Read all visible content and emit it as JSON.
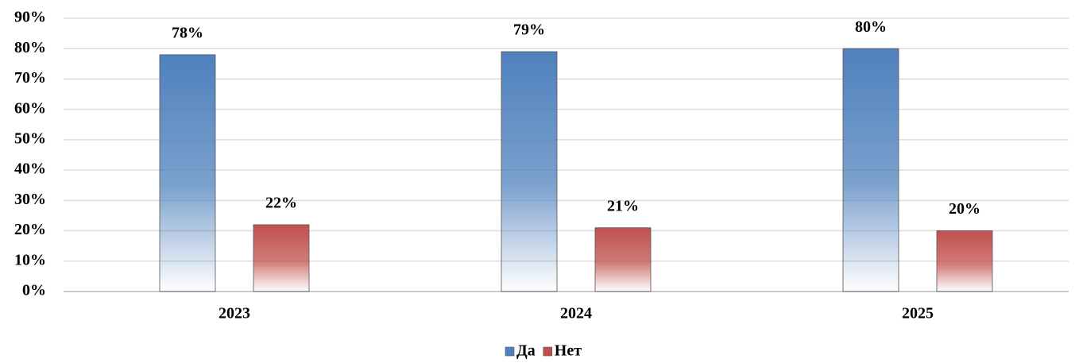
{
  "chart_data": {
    "type": "bar",
    "categories": [
      "2023",
      "2024",
      "2025"
    ],
    "series": [
      {
        "name": "Да",
        "color": "#4f81bd",
        "values": [
          78,
          79,
          80
        ],
        "value_labels": [
          "78%",
          "79%",
          "80%"
        ]
      },
      {
        "name": "Нет",
        "color": "#c0504d",
        "values": [
          22,
          21,
          20
        ],
        "value_labels": [
          "22%",
          "21%",
          "20%"
        ]
      }
    ],
    "ylim": [
      0,
      90
    ],
    "yticks": [
      {
        "value": 0,
        "label": "0%"
      },
      {
        "value": 10,
        "label": "10%"
      },
      {
        "value": 20,
        "label": "20%"
      },
      {
        "value": 30,
        "label": "30%"
      },
      {
        "value": 40,
        "label": "40%"
      },
      {
        "value": 50,
        "label": "50%"
      },
      {
        "value": 60,
        "label": "60%"
      },
      {
        "value": 70,
        "label": "70%"
      },
      {
        "value": 80,
        "label": "80%"
      },
      {
        "value": 90,
        "label": "90%"
      }
    ],
    "grid": true,
    "legend": "bottom"
  }
}
